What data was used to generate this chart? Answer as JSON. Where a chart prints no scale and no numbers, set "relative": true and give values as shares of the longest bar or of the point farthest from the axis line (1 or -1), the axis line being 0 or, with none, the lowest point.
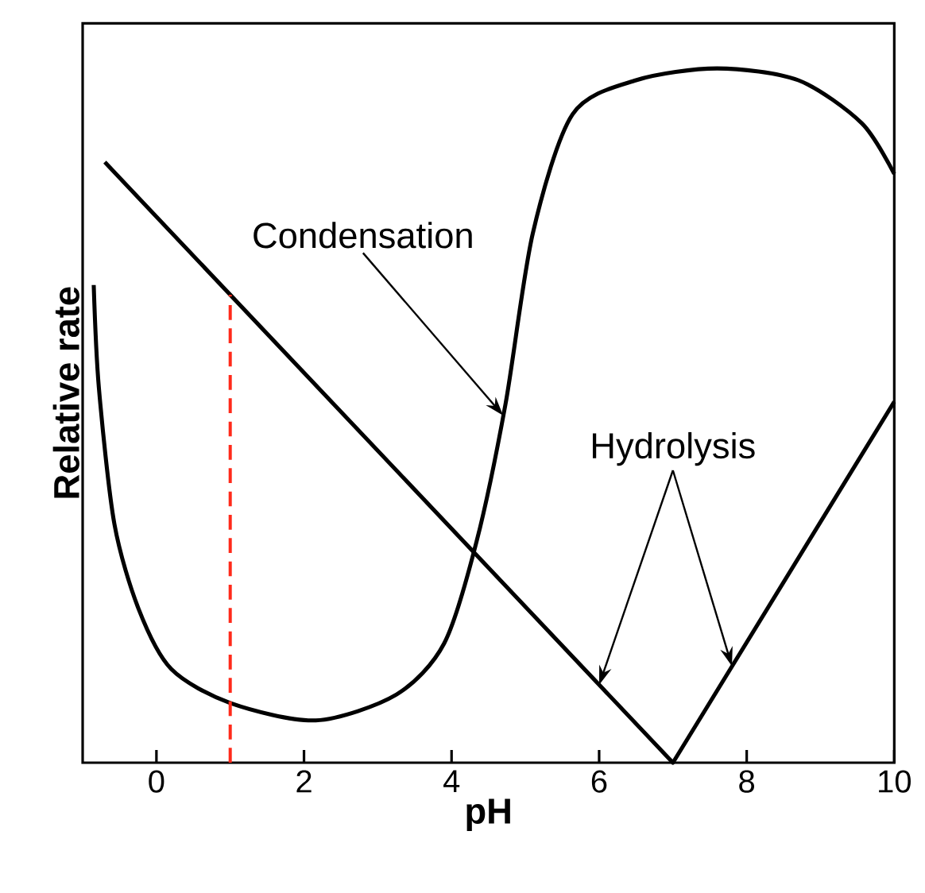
{
  "chart_data": {
    "type": "line",
    "relative": true,
    "xlabel": "pH",
    "ylabel": "Relative rate",
    "xlim": [
      -1,
      10
    ],
    "xticks": [
      0,
      2,
      4,
      6,
      8,
      10
    ],
    "series": [
      {
        "color": "#000000",
        "x": [
          -0.85,
          -0.78,
          -0.57,
          -0.24,
          0.2,
          1.0,
          2.16,
          3.25,
          3.9,
          4.34,
          4.73,
          5.1,
          5.64,
          6.5,
          7.6,
          8.7,
          9.56,
          10
        ],
        "values": [
          0.688,
          0.54,
          0.344,
          0.221,
          0.135,
          0.086,
          0.061,
          0.098,
          0.172,
          0.319,
          0.516,
          0.762,
          0.934,
          0.983,
          1,
          0.983,
          0.921,
          0.848
        ]
      },
      {
        "color": "#000000",
        "x": [
          -0.7,
          7,
          10
        ],
        "values": [
          0.865,
          0,
          0.52
        ]
      }
    ],
    "ref_lines": [
      {
        "axis": "x",
        "value": 1,
        "color": "#ff2a1a",
        "line_style": "dashed"
      }
    ],
    "annotations": [
      {
        "text": "Condensation",
        "x": 4.7,
        "y": 0.5
      },
      {
        "text": "Hydrolysis",
        "x": 6.0,
        "y": 0.112
      }
    ],
    "grid": false,
    "marker": "none",
    "line_style": "solid"
  }
}
